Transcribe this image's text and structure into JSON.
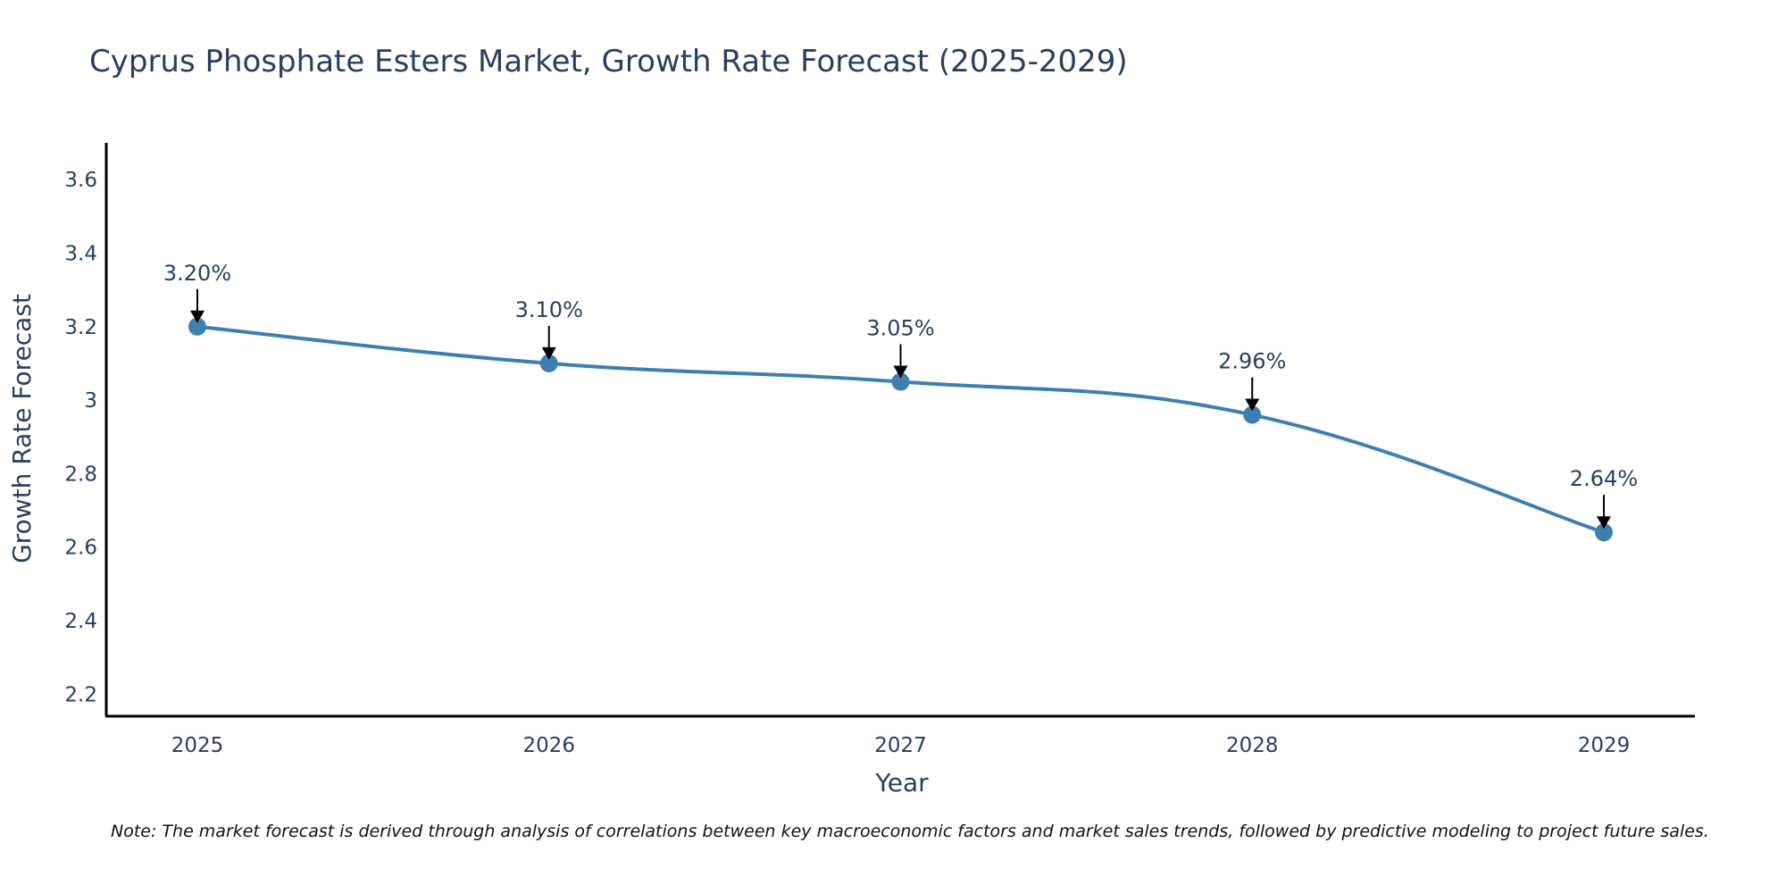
{
  "chart_data": {
    "type": "line",
    "title": "Cyprus Phosphate Esters Market, Growth Rate Forecast (2025-2029)",
    "xlabel": "Year",
    "ylabel": "Growth Rate Forecast",
    "categories": [
      "2025",
      "2026",
      "2027",
      "2028",
      "2029"
    ],
    "series": [
      {
        "name": "Growth Rate Forecast",
        "values": [
          3.2,
          3.1,
          3.05,
          2.96,
          2.64
        ]
      }
    ],
    "data_labels": [
      "3.20%",
      "3.10%",
      "3.05%",
      "2.96%",
      "2.64%"
    ],
    "ylim": [
      2.14,
      3.7
    ],
    "yticks": [
      2.2,
      2.4,
      2.6,
      2.8,
      3.0,
      3.2,
      3.4,
      3.6
    ],
    "ytick_labels": [
      "2.2",
      "2.4",
      "2.6",
      "2.8",
      "3",
      "3.2",
      "3.4",
      "3.6"
    ],
    "grid": false,
    "line_color": "#3f7fb0",
    "marker_color": "#3f7fb0",
    "arrow_color": "#000000"
  },
  "note": "Note: The market forecast is derived through analysis of correlations between key macroeconomic factors and market sales trends, followed by predictive modeling to project future sales."
}
